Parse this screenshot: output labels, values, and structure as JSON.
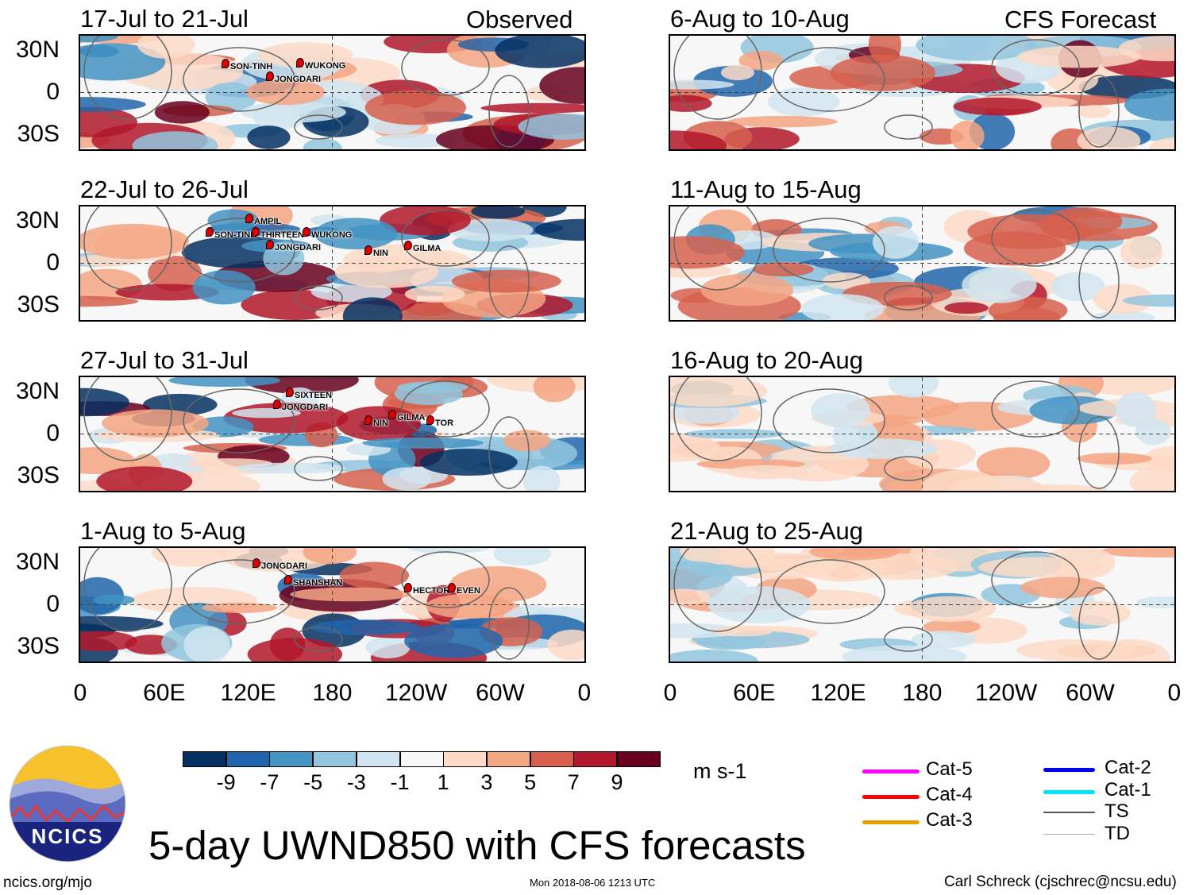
{
  "headers": {
    "left": "Observed",
    "right": "CFS Forecast"
  },
  "observed_panels": [
    {
      "title": "17-Jul to 21-Jul",
      "storms": [
        "SON-TINH",
        "JONGDARI",
        "WUKONG"
      ]
    },
    {
      "title": "22-Jul to 26-Jul",
      "storms": [
        "AMPIL",
        "SON-TINH",
        "THIRTEEN",
        "WUKONG",
        "JONGDARI",
        "NIN",
        "GILMA"
      ]
    },
    {
      "title": "27-Jul to 31-Jul",
      "storms": [
        "SIXTEEN",
        "JONGDARI",
        "NIN",
        "GILMA",
        "TOR"
      ]
    },
    {
      "title": "1-Aug to 5-Aug",
      "storms": [
        "JONGDARI",
        "SHANSHAN",
        "HECTOR",
        "EVEN"
      ]
    }
  ],
  "forecast_panels": [
    {
      "title": "6-Aug to 10-Aug"
    },
    {
      "title": "11-Aug to 15-Aug"
    },
    {
      "title": "16-Aug to 20-Aug"
    },
    {
      "title": "21-Aug to 25-Aug"
    }
  ],
  "lat_labels": [
    "30N",
    "0",
    "30S"
  ],
  "lon_labels": [
    "0",
    "60E",
    "120E",
    "180",
    "120W",
    "60W",
    "0"
  ],
  "colorbar": {
    "colors": [
      "#053061",
      "#2166ac",
      "#4393c3",
      "#92c5de",
      "#d1e5f0",
      "#f7f7f7",
      "#fddbc7",
      "#f4a582",
      "#d6604d",
      "#b2182b",
      "#67001f"
    ],
    "labels": [
      "-9",
      "-7",
      "-5",
      "-3",
      "-1",
      "1",
      "3",
      "5",
      "7",
      "9"
    ],
    "units": "m s-1"
  },
  "track_legend": [
    {
      "label": "Cat-5",
      "color": "#ff00ff"
    },
    {
      "label": "Cat-4",
      "color": "#ff0000"
    },
    {
      "label": "Cat-3",
      "color": "#e8a000"
    },
    {
      "label": "Cat-2",
      "color": "#0000ff"
    },
    {
      "label": "Cat-1",
      "color": "#00e5ff"
    },
    {
      "label": "TS",
      "color": "#555555"
    },
    {
      "label": "TD",
      "color": "#aaaaaa"
    }
  ],
  "logo": {
    "text": "NCICS"
  },
  "main_title": "5-day UWND850 with CFS forecasts",
  "footer": {
    "url": "ncics.org/mjo",
    "timestamp": "Mon 2018-08-06 1213 UTC",
    "author": "Carl Schreck (cjschrec@ncsu.edu)"
  }
}
